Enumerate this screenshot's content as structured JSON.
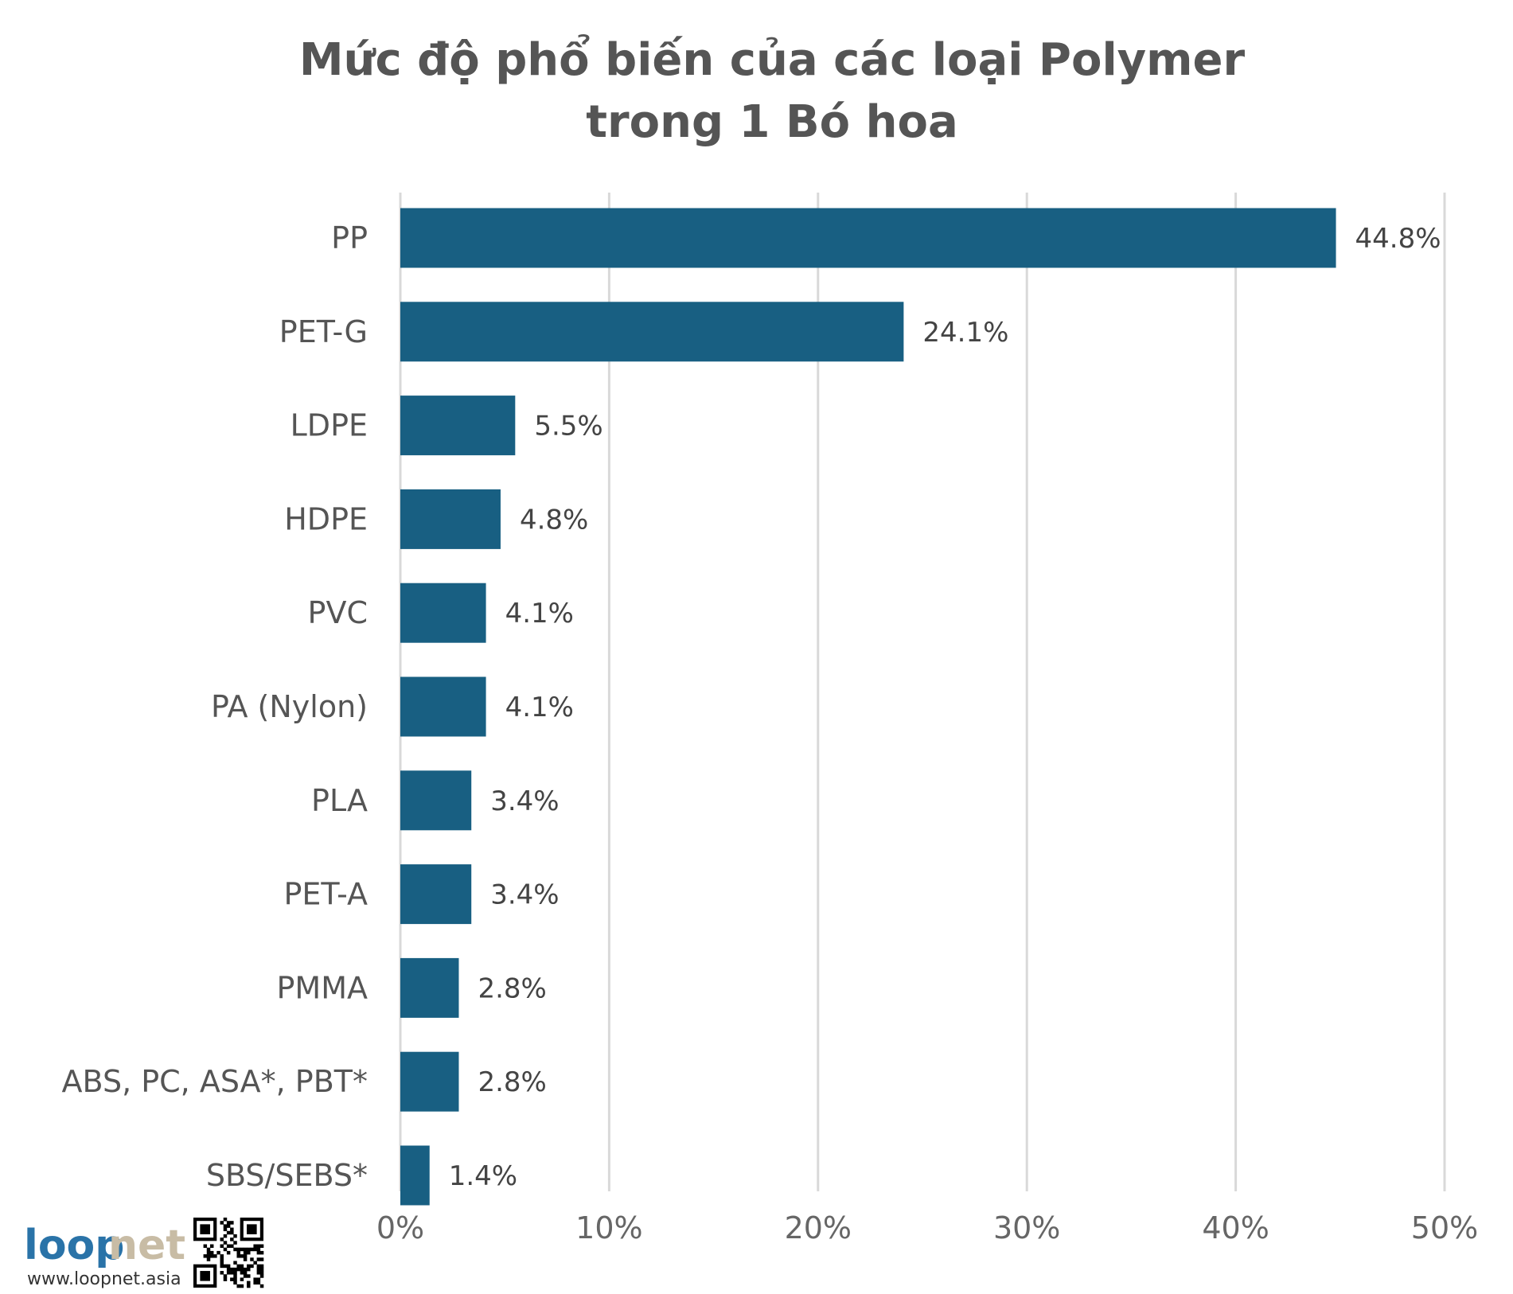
{
  "chart_data": {
    "type": "bar",
    "orientation": "horizontal",
    "title": "Mức độ phổ biến của các loại Polymer trong 1 Bó hoa",
    "title_lines": [
      "Mức độ phổ biến của các loại Polymer",
      "trong 1 Bó hoa"
    ],
    "categories": [
      "PP",
      "PET-G",
      "LDPE",
      "HDPE",
      "PVC",
      "PA (Nylon)",
      "PLA",
      "PET-A",
      "PMMA",
      "ABS, PC, ASA*, PBT*",
      "SBS/SEBS*"
    ],
    "values": [
      44.8,
      24.1,
      5.5,
      4.8,
      4.1,
      4.1,
      3.4,
      3.4,
      2.8,
      2.8,
      1.4
    ],
    "value_labels": [
      "44.8%",
      "24.1%",
      "5.5%",
      "4.8%",
      "4.1%",
      "4.1%",
      "3.4%",
      "3.4%",
      "2.8%",
      "2.8%",
      "1.4%"
    ],
    "xlim": [
      0,
      50
    ],
    "x_ticks": [
      0,
      10,
      20,
      30,
      40,
      50
    ],
    "x_tick_labels": [
      "0%",
      "10%",
      "20%",
      "30%",
      "40%",
      "50%"
    ],
    "xlabel": "",
    "ylabel": "",
    "grid": "vertical",
    "legend": "none",
    "bar_color": "#185f82"
  },
  "branding": {
    "logo_word_part1": "loop",
    "logo_word_part2": "net",
    "logo_color_part1": "#2a73a8",
    "logo_color_part2": "#c8bca5",
    "url": "www.loopnet.asia",
    "qr_code": "qr-code-icon"
  },
  "colors": {
    "grid": "#d9d9d9",
    "title": "#555555",
    "text": "#555555"
  }
}
